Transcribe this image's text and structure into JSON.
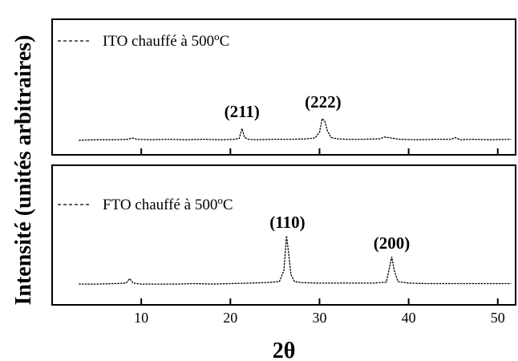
{
  "chart_data": [
    {
      "type": "line",
      "panel": "top",
      "legend": "ITO chauffé à 500°C",
      "legend_parts": {
        "before": "ITO chauffé à 500",
        "sup": "o",
        "after": "C"
      },
      "legend_position": "top-left",
      "xlim": [
        0,
        52
      ],
      "x": [
        3,
        5,
        7,
        8.5,
        9,
        9.5,
        11,
        13,
        15,
        17,
        19,
        20.5,
        21,
        21.3,
        21.6,
        22,
        23,
        25,
        27,
        28.5,
        29.5,
        30,
        30.3,
        30.6,
        30.9,
        31.3,
        32,
        33,
        35,
        36.7,
        37.3,
        39,
        41,
        43,
        44.8,
        45.2,
        45.8,
        47,
        49,
        51.5
      ],
      "y": [
        0.04,
        0.05,
        0.05,
        0.06,
        0.09,
        0.06,
        0.05,
        0.06,
        0.05,
        0.06,
        0.05,
        0.06,
        0.08,
        0.3,
        0.1,
        0.06,
        0.05,
        0.06,
        0.06,
        0.07,
        0.09,
        0.22,
        0.52,
        0.46,
        0.24,
        0.1,
        0.07,
        0.06,
        0.06,
        0.07,
        0.11,
        0.06,
        0.05,
        0.06,
        0.06,
        0.1,
        0.05,
        0.06,
        0.05,
        0.06
      ],
      "peaks": [
        {
          "label": "(211)",
          "x": 21.3
        },
        {
          "label": "(222)",
          "x": 30.4
        }
      ]
    },
    {
      "type": "line",
      "panel": "bottom",
      "legend": "FTO chauffé à 500°C",
      "legend_parts": {
        "before": "FTO chauffé à 500",
        "sup": "o",
        "after": "C"
      },
      "legend_position": "top-left",
      "xlim": [
        0,
        52
      ],
      "xticks": [
        10,
        20,
        30,
        40,
        50
      ],
      "xlabel": "2θ",
      "x": [
        3,
        5,
        7,
        8.3,
        8.7,
        9.1,
        10,
        12,
        14,
        16,
        18,
        20,
        22,
        24,
        25.5,
        26,
        26.3,
        26.5,
        26.8,
        27.2,
        28,
        30,
        32,
        34,
        36,
        37.5,
        37.9,
        38.1,
        38.4,
        38.8,
        40,
        42,
        44,
        46,
        48,
        50,
        51.5
      ],
      "y": [
        0.03,
        0.03,
        0.04,
        0.05,
        0.14,
        0.05,
        0.03,
        0.03,
        0.03,
        0.04,
        0.03,
        0.04,
        0.05,
        0.06,
        0.08,
        0.3,
        1.0,
        0.7,
        0.22,
        0.08,
        0.06,
        0.05,
        0.05,
        0.05,
        0.05,
        0.07,
        0.4,
        0.58,
        0.3,
        0.08,
        0.05,
        0.04,
        0.04,
        0.04,
        0.04,
        0.04,
        0.04
      ],
      "peaks": [
        {
          "label": "(110)",
          "x": 26.4
        },
        {
          "label": "(200)",
          "x": 38.1
        }
      ]
    }
  ],
  "ylabel": "Intensité (unités arbitraires)"
}
